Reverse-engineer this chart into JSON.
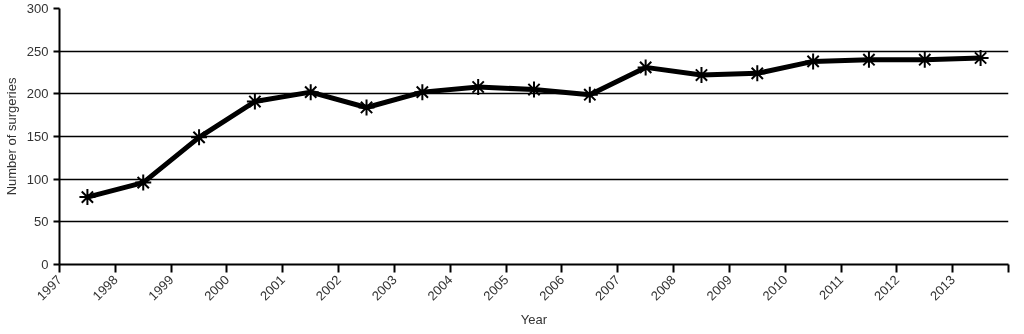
{
  "chart_data": {
    "type": "line",
    "xlabel": "Year",
    "ylabel": "Number of surgeries",
    "x": [
      1997.5,
      1998.5,
      1999.5,
      2000.5,
      2001.5,
      2002.5,
      2003.5,
      2004.5,
      2005.5,
      2006.5,
      2007.5,
      2008.5,
      2009.5,
      2010.5,
      2011.5,
      2012.5,
      2013.5
    ],
    "series": [
      {
        "color": "#000000",
        "values": [
          79,
          96,
          149,
          191,
          202,
          184,
          202,
          208,
          205,
          199,
          231,
          222,
          224,
          238,
          240,
          240,
          242
        ]
      }
    ],
    "xlim": [
      1997,
      2014
    ],
    "xticks": [
      1997,
      1998,
      1999,
      2000,
      2001,
      2002,
      2003,
      2004,
      2005,
      2006,
      2007,
      2008,
      2009,
      2010,
      2011,
      2012,
      2013,
      {
        "value": 2014,
        "label": null
      }
    ],
    "ylim": [
      0,
      300
    ],
    "yticks": [
      0,
      50,
      100,
      150,
      200,
      250,
      300
    ],
    "grid": "y",
    "marker": "cross",
    "line_style": "solid"
  }
}
